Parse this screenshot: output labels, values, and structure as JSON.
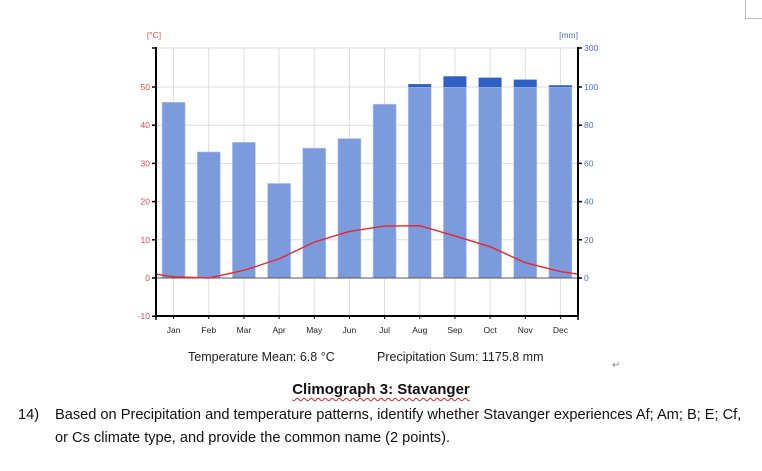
{
  "chart_data": {
    "type": "bar+line",
    "categories": [
      "Jan",
      "Feb",
      "Mar",
      "Apr",
      "May",
      "Jun",
      "Jul",
      "Aug",
      "Sep",
      "Oct",
      "Nov",
      "Dec"
    ],
    "series": [
      {
        "kind": "bar",
        "axis": "right",
        "unit": "mm",
        "color": "#7b9bdc",
        "excess_color": "#2f5fc4",
        "values": [
          92,
          66,
          71,
          49.5,
          68,
          73,
          91,
          115,
          155,
          148,
          138,
          109
        ]
      },
      {
        "kind": "line",
        "axis": "left",
        "unit": "°C",
        "color": "#e8262b",
        "values": [
          0.3,
          0,
          2,
          5,
          9.4,
          12.2,
          13.6,
          13.7,
          11,
          8.2,
          4,
          1.7
        ]
      }
    ],
    "left_axis": {
      "label": "[°C]",
      "ticks": [
        "-10",
        "0",
        "10",
        "20",
        "30",
        "40",
        "50"
      ],
      "range": [
        -10,
        60
      ],
      "color": "#e8474b"
    },
    "right_axis": {
      "label": "[mm]",
      "ticks": [
        "0",
        "20",
        "40",
        "60",
        "80",
        "100",
        "300"
      ],
      "range": [
        0,
        300
      ],
      "scale_break": 100,
      "color": "#4a6fd0"
    },
    "grid": true
  },
  "stats": {
    "temperature_mean": "Temperature Mean: 6.8 °C",
    "precipitation_sum": "Precipitation Sum: 1175.8 mm"
  },
  "caption": {
    "title": "Climograph 3: Stavanger"
  },
  "question": {
    "number": "14)",
    "text": "Based on Precipitation and temperature patterns, identify whether Stavanger experiences Af; Am; B; E; Cf, or Cs climate type, and provide the common name (2 points)."
  },
  "pilcrow": "↵"
}
